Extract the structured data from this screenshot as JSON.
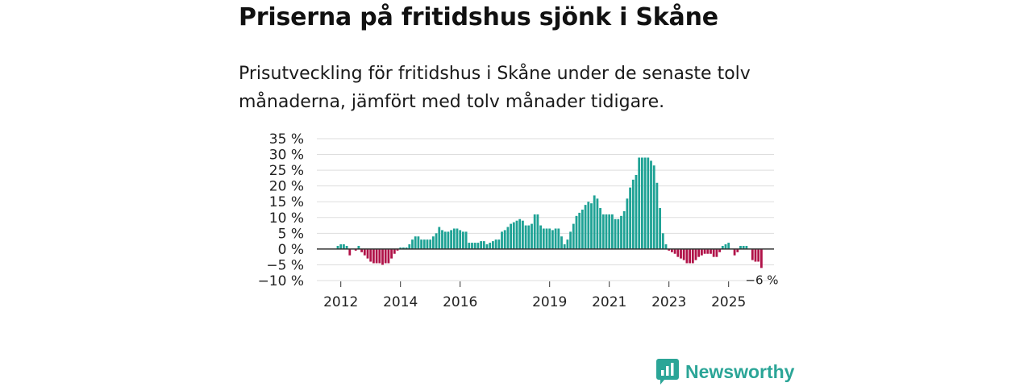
{
  "header": {
    "title": "Priserna på fritidshus sjönk i Skåne",
    "subtitle": "Prisutveckling för fritidshus i Skåne under de senaste tolv månaderna, jämfört med tolv månader tidigare."
  },
  "brand": {
    "name": "Newsworthy",
    "icon": "newsworthy-logo-icon"
  },
  "colors": {
    "positive": "#1fa295",
    "negative": "#b01248",
    "grid": "#dddddd",
    "zero_line": "#333333",
    "brand": "#2ba597"
  },
  "chart_data": {
    "type": "bar",
    "title": "Priserna på fritidshus sjönk i Skåne",
    "xlabel": "",
    "ylabel": "",
    "ylim": [
      -10,
      35
    ],
    "y_ticks": [
      {
        "value": 35,
        "label": "35 %"
      },
      {
        "value": 30,
        "label": "30 %"
      },
      {
        "value": 25,
        "label": "25 %"
      },
      {
        "value": 20,
        "label": "20 %"
      },
      {
        "value": 15,
        "label": "15 %"
      },
      {
        "value": 10,
        "label": "10 %"
      },
      {
        "value": 5,
        "label": "5 %"
      },
      {
        "value": 0,
        "label": "0 %"
      },
      {
        "value": -5,
        "label": "−5 %"
      },
      {
        "value": -10,
        "label": "−10 %"
      }
    ],
    "x_ticks": [
      {
        "index": 1,
        "label": "2012"
      },
      {
        "index": 21,
        "label": "2014"
      },
      {
        "index": 41,
        "label": "2016"
      },
      {
        "index": 71,
        "label": "2019"
      },
      {
        "index": 91,
        "label": "2021"
      },
      {
        "index": 111,
        "label": "2023"
      },
      {
        "index": 131,
        "label": "2025"
      }
    ],
    "last_value_label": "−6 %",
    "values": [
      1,
      1.5,
      1.5,
      1,
      -2,
      0,
      -0.5,
      1,
      -1,
      -2,
      -3,
      -4,
      -4.5,
      -4.5,
      -4.5,
      -5,
      -4.5,
      -4.5,
      -3,
      -1.5,
      -0.5,
      0.5,
      0.5,
      0.5,
      1.5,
      3,
      4,
      4,
      3,
      3,
      3,
      3,
      4,
      5,
      7,
      6,
      5.5,
      5.5,
      6,
      6.5,
      6.5,
      6,
      5.5,
      5.5,
      2,
      2,
      2,
      2,
      2.5,
      2.5,
      1.5,
      2,
      2.5,
      3,
      3,
      5.5,
      6,
      7,
      8,
      8.5,
      9,
      9.5,
      9,
      7.5,
      7.5,
      8,
      11,
      11,
      7.5,
      6.5,
      6.5,
      6.5,
      6,
      6.5,
      6.5,
      4,
      1.5,
      3,
      5.5,
      8,
      10.5,
      11.5,
      12.5,
      14,
      15,
      14.5,
      17,
      16,
      13,
      11,
      11,
      11,
      11,
      9.5,
      9.5,
      10.5,
      12,
      16,
      19.5,
      22,
      23.5,
      29,
      29,
      29,
      29,
      28,
      26.5,
      21,
      13,
      5,
      1.5,
      -0.5,
      -1,
      -1.5,
      -2.5,
      -3,
      -3.5,
      -4.5,
      -4.5,
      -4.5,
      -3.5,
      -2.5,
      -2,
      -1.5,
      -1.5,
      -1.5,
      -2.5,
      -2.5,
      -1,
      1,
      1.5,
      2,
      0,
      -2,
      -1,
      1,
      1,
      1,
      0,
      -3.5,
      -4,
      -4,
      -6
    ]
  }
}
